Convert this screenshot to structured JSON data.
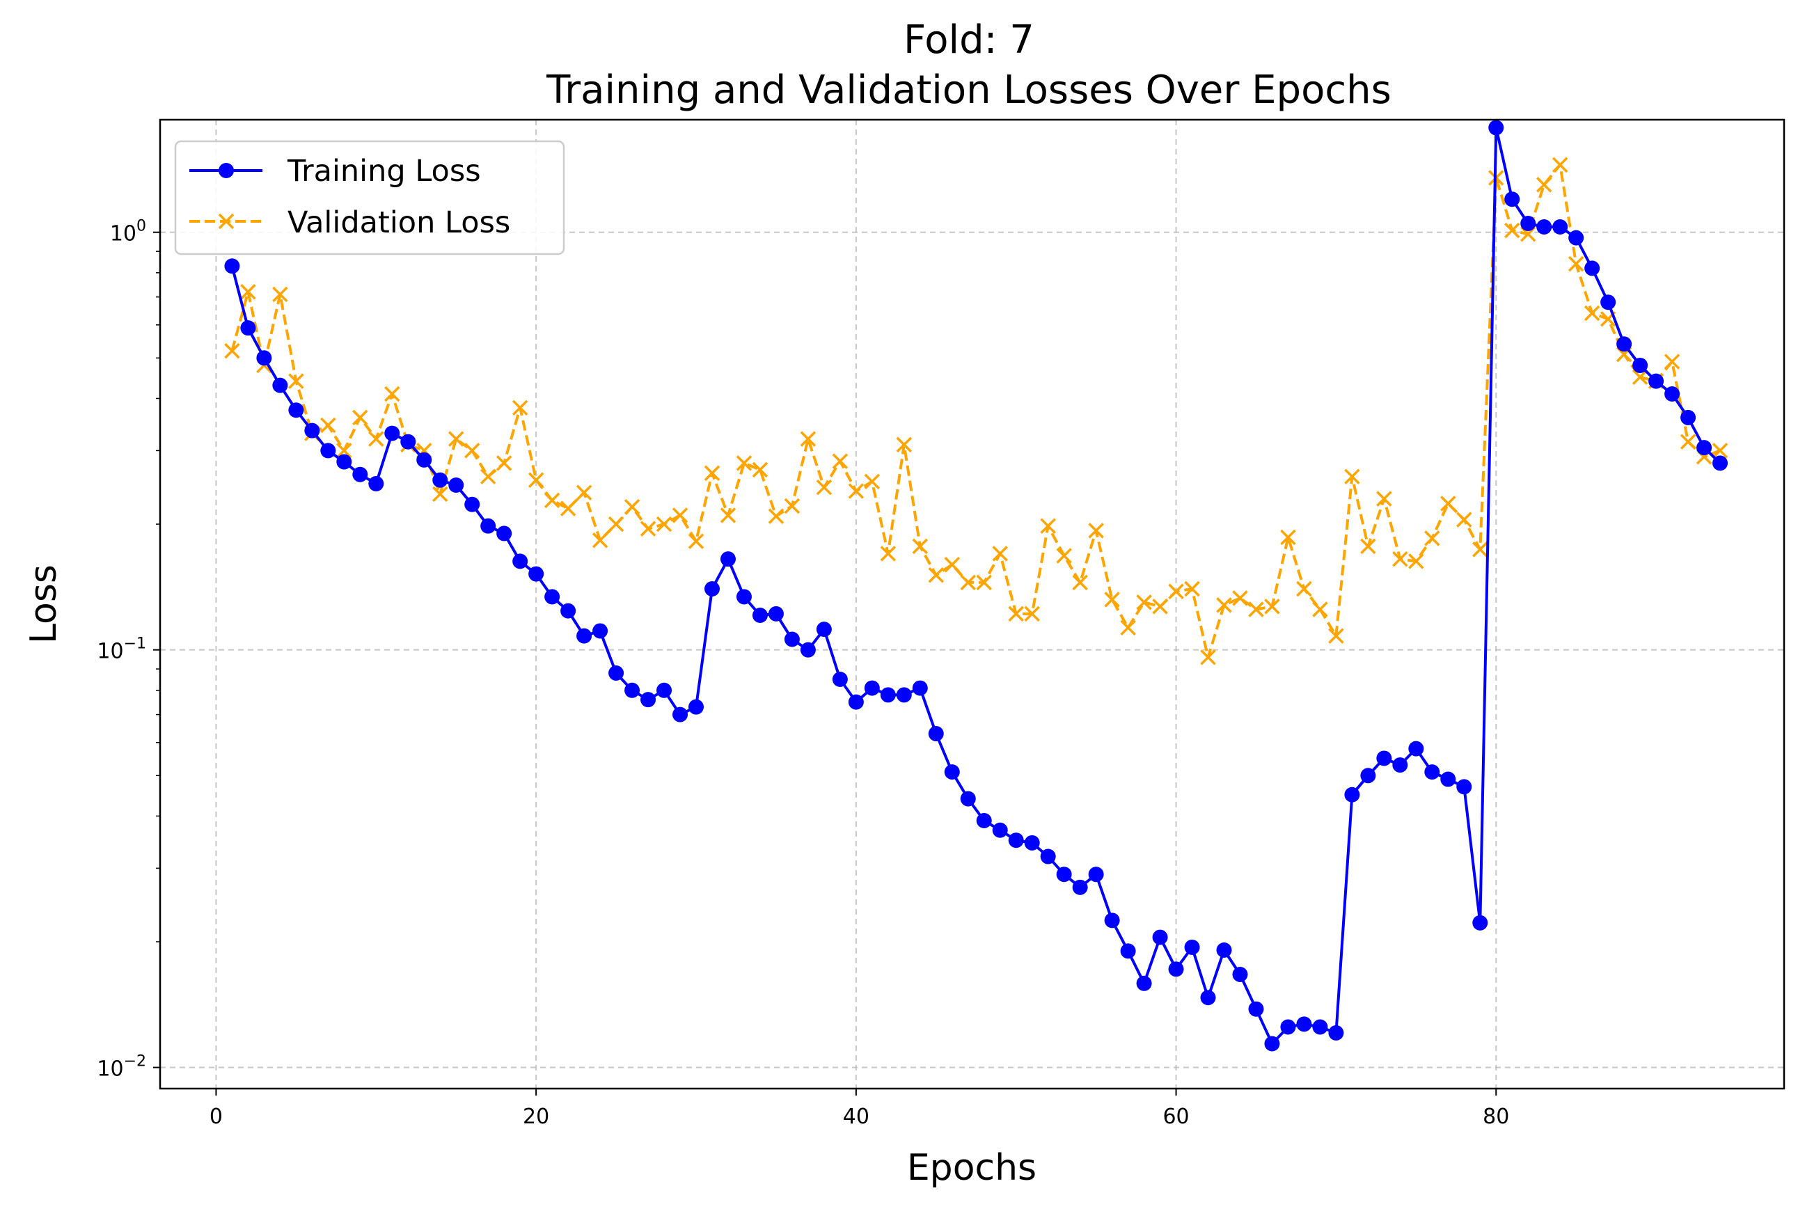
{
  "chart_data": {
    "type": "line",
    "title_line1": "Fold: 7",
    "title_line2": "Training and Validation Losses Over Epochs",
    "xlabel": "Epochs",
    "ylabel": "Loss",
    "y_scale": "log",
    "xlim": [
      -3.5,
      98
    ],
    "ylim": [
      0.0089,
      1.86
    ],
    "grid": true,
    "legend_position": "top-left",
    "x_ticks": [
      {
        "value": 0,
        "label": "0"
      },
      {
        "value": 20,
        "label": "20"
      },
      {
        "value": 40,
        "label": "40"
      },
      {
        "value": 60,
        "label": "60"
      },
      {
        "value": 80,
        "label": "80"
      }
    ],
    "y_ticks": [
      {
        "value": 1,
        "base": "10",
        "exp": "0"
      },
      {
        "value": 0.1,
        "base": "10",
        "exp": "−1"
      },
      {
        "value": 0.01,
        "base": "10",
        "exp": "−2"
      }
    ],
    "series": [
      {
        "name": "Training Loss",
        "color": "#0000ff",
        "marker": "circle",
        "dash": "solid",
        "x": [
          1,
          2,
          3,
          4,
          5,
          6,
          7,
          8,
          9,
          10,
          11,
          12,
          13,
          14,
          15,
          16,
          17,
          18,
          19,
          20,
          21,
          22,
          23,
          24,
          25,
          26,
          27,
          28,
          29,
          30,
          31,
          32,
          33,
          34,
          35,
          36,
          37,
          38,
          39,
          40,
          41,
          42,
          43,
          44,
          45,
          46,
          47,
          48,
          49,
          50,
          51,
          52,
          53,
          54,
          55,
          56,
          57,
          58,
          59,
          60,
          61,
          62,
          63,
          64,
          65,
          66,
          67,
          68,
          69,
          70,
          71,
          72,
          73,
          74,
          75,
          76,
          77,
          78,
          79,
          80,
          81,
          82,
          83,
          84,
          85,
          86,
          87,
          88,
          89,
          90,
          91,
          92,
          93,
          94
        ],
        "values": [
          0.83,
          0.59,
          0.5,
          0.43,
          0.375,
          0.335,
          0.3,
          0.282,
          0.263,
          0.25,
          0.33,
          0.315,
          0.285,
          0.255,
          0.248,
          0.223,
          0.198,
          0.19,
          0.163,
          0.152,
          0.134,
          0.124,
          0.108,
          0.111,
          0.088,
          0.08,
          0.076,
          0.08,
          0.07,
          0.073,
          0.14,
          0.165,
          0.134,
          0.121,
          0.122,
          0.106,
          0.1,
          0.112,
          0.085,
          0.075,
          0.081,
          0.078,
          0.078,
          0.081,
          0.063,
          0.051,
          0.044,
          0.039,
          0.037,
          0.035,
          0.0345,
          0.032,
          0.029,
          0.027,
          0.029,
          0.0225,
          0.019,
          0.0159,
          0.0205,
          0.0172,
          0.0194,
          0.0147,
          0.0191,
          0.0167,
          0.0138,
          0.0114,
          0.0125,
          0.0127,
          0.0125,
          0.0121,
          0.045,
          0.05,
          0.055,
          0.053,
          0.058,
          0.051,
          0.049,
          0.047,
          0.0222,
          1.78,
          1.2,
          1.05,
          1.03,
          1.03,
          0.97,
          0.82,
          0.68,
          0.54,
          0.48,
          0.44,
          0.41,
          0.36,
          0.305,
          0.28
        ]
      },
      {
        "name": "Validation Loss",
        "color": "#ffa500",
        "marker": "x",
        "dash": "dashed",
        "x": [
          1,
          2,
          3,
          4,
          5,
          6,
          7,
          8,
          9,
          10,
          11,
          12,
          13,
          14,
          15,
          16,
          17,
          18,
          19,
          20,
          21,
          22,
          23,
          24,
          25,
          26,
          27,
          28,
          29,
          30,
          31,
          32,
          33,
          34,
          35,
          36,
          37,
          38,
          39,
          40,
          41,
          42,
          43,
          44,
          45,
          46,
          47,
          48,
          49,
          50,
          51,
          52,
          53,
          54,
          55,
          56,
          57,
          58,
          59,
          60,
          61,
          62,
          63,
          64,
          65,
          66,
          67,
          68,
          69,
          70,
          71,
          72,
          73,
          74,
          75,
          76,
          77,
          78,
          79,
          80,
          81,
          82,
          83,
          84,
          85,
          86,
          87,
          88,
          89,
          90,
          91,
          92,
          93,
          94
        ],
        "values": [
          0.52,
          0.72,
          0.48,
          0.71,
          0.44,
          0.33,
          0.345,
          0.3,
          0.36,
          0.32,
          0.41,
          0.31,
          0.3,
          0.236,
          0.32,
          0.3,
          0.26,
          0.28,
          0.38,
          0.255,
          0.228,
          0.218,
          0.238,
          0.183,
          0.2,
          0.22,
          0.195,
          0.2,
          0.21,
          0.182,
          0.265,
          0.21,
          0.28,
          0.27,
          0.209,
          0.221,
          0.32,
          0.245,
          0.283,
          0.24,
          0.253,
          0.17,
          0.31,
          0.177,
          0.151,
          0.16,
          0.145,
          0.145,
          0.17,
          0.122,
          0.122,
          0.198,
          0.168,
          0.145,
          0.193,
          0.132,
          0.113,
          0.13,
          0.127,
          0.138,
          0.14,
          0.096,
          0.128,
          0.133,
          0.125,
          0.127,
          0.186,
          0.14,
          0.125,
          0.108,
          0.26,
          0.177,
          0.23,
          0.165,
          0.163,
          0.185,
          0.224,
          0.205,
          0.174,
          1.35,
          1.01,
          0.99,
          1.3,
          1.45,
          0.84,
          0.64,
          0.62,
          0.51,
          0.45,
          0.44,
          0.49,
          0.315,
          0.29,
          0.3
        ]
      }
    ]
  }
}
